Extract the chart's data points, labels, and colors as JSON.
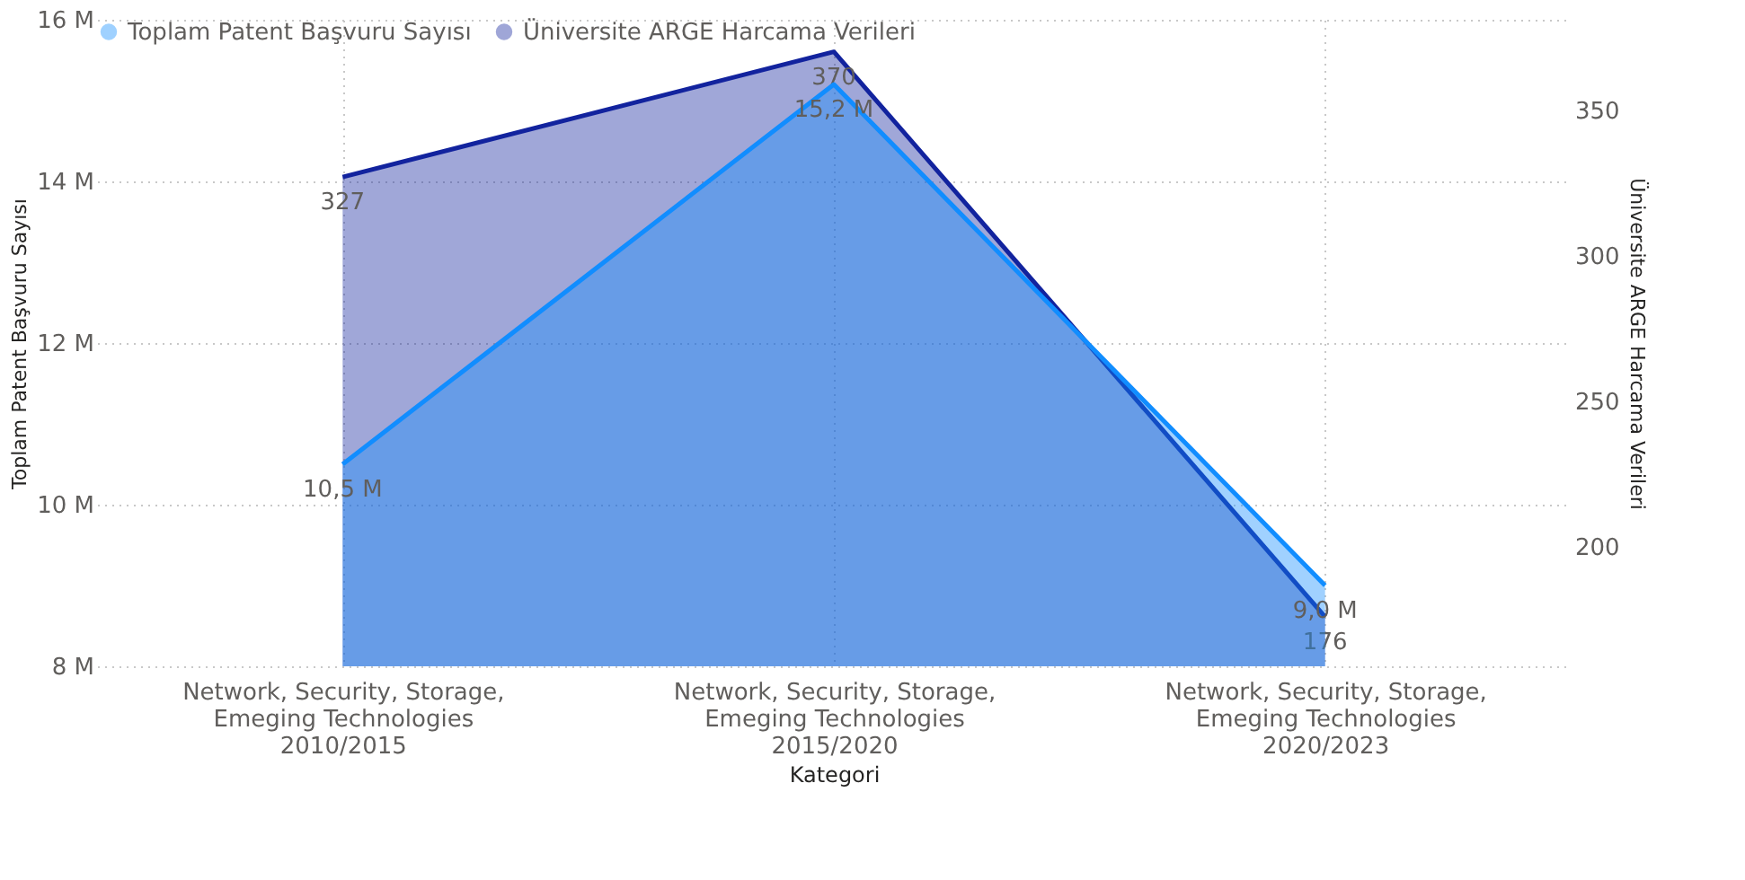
{
  "chart_data": {
    "type": "area",
    "xlabel": "Kategori",
    "ylabel": "Toplam Patent Başvuru Sayısı",
    "y2label": "Üniversite ARGE Harcama Verileri",
    "categories": [
      "Network, Security, Storage, Emeging Technologies 2010/2015",
      "Network, Security, Storage, Emeging Technologies 2015/2020",
      "Network, Security, Storage, Emeging Technologies 2020/2023"
    ],
    "series": [
      {
        "name": "Toplam Patent Başvuru Sayısı",
        "color": "#118dff",
        "values": [
          10500000,
          15200000,
          9000000
        ],
        "value_labels": [
          "10,5 M",
          "15,2 M",
          "9,0 M"
        ]
      },
      {
        "name": "Üniversite ARGE Harcama Verileri",
        "color": "#12239e",
        "axis": "y2",
        "values": [
          327,
          370,
          176
        ],
        "value_labels": [
          "327",
          "370",
          "176"
        ]
      }
    ],
    "ylim": [
      8000000,
      16000000
    ],
    "yticks": [
      {
        "value": 8000000,
        "label": "8 M"
      },
      {
        "value": 10000000,
        "label": "10 M"
      },
      {
        "value": 12000000,
        "label": "12 M"
      },
      {
        "value": 14000000,
        "label": "14 M"
      },
      {
        "value": 16000000,
        "label": "16 M"
      }
    ],
    "y2lim": [
      159,
      381
    ],
    "y2ticks": [
      200,
      250,
      300,
      350
    ],
    "grid": true,
    "legend": "top left"
  }
}
